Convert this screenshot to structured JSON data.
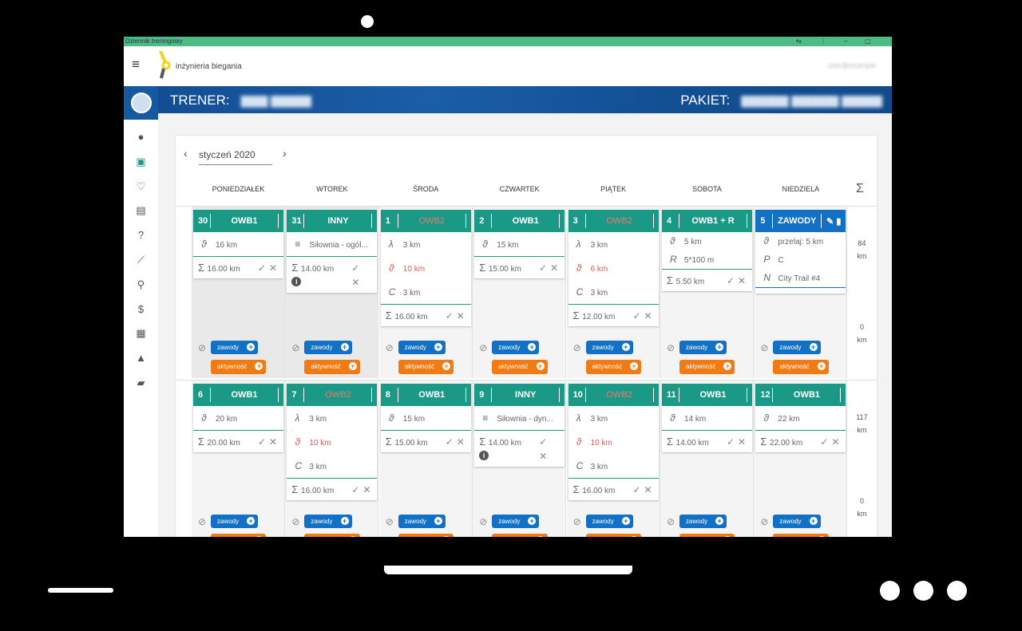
{
  "window": {
    "title": "Dziennik treningowy",
    "controls": [
      "⇆",
      "⋮",
      "–",
      "▢"
    ]
  },
  "header": {
    "brand": "inżynieria biegania",
    "user": "user@example"
  },
  "banner": {
    "trener_label": "TRENER:",
    "trener_value": "████ ██████",
    "pakiet_label": "PAKIET:",
    "pakiet_value": "███████ ███████ ██████"
  },
  "sidebar": {
    "icons": [
      "person-icon",
      "calendar-icon",
      "heart-icon",
      "gift-icon",
      "help-icon",
      "chart-icon",
      "runner-icon",
      "dollar-icon",
      "film-icon",
      "bell-icon",
      "chat-icon"
    ],
    "glyphs": [
      "●",
      "▣",
      "♡",
      "▤",
      "?",
      "⟋",
      "⚲",
      "$",
      "▦",
      "▲",
      "▰"
    ],
    "active_color": "#1a9a86"
  },
  "calendar": {
    "month": "styczeń 2020",
    "prev": "‹",
    "next": "›",
    "sigma": "Σ",
    "weekdays": [
      "PONIEDZIAŁEK",
      "WTOREK",
      "ŚRODA",
      "CZWARTEK",
      "PIĄTEK",
      "SOBOTA",
      "NIEDZIELA"
    ],
    "buttons": {
      "zawody": "zawody",
      "aktywnosc": "aktywność"
    },
    "weeks": [
      {
        "totals": [
          {
            "value": "84",
            "unit": "km"
          },
          {
            "value": "0",
            "unit": "km"
          }
        ],
        "days": [
          {
            "num": "30",
            "type": "OWB1",
            "prev": true,
            "entries": [
              {
                "icon": "ϑ",
                "text": "16 km"
              }
            ],
            "sum": "16.00 km"
          },
          {
            "num": "31",
            "type": "INNY",
            "prev": true,
            "entries": [
              {
                "icon": "≡",
                "text": "Siłownia - ogól..."
              }
            ],
            "sum": "14.00 km",
            "info": true
          },
          {
            "num": "1",
            "type": "OWB2",
            "type_red": true,
            "entries": [
              {
                "icon": "λ",
                "text": "3 km"
              },
              {
                "icon": "ϑ",
                "text": "10 km",
                "red": true
              },
              {
                "icon": "C",
                "text": "3 km"
              }
            ],
            "sum": "16.00 km"
          },
          {
            "num": "2",
            "type": "OWB1",
            "entries": [
              {
                "icon": "ϑ",
                "text": "15 km"
              }
            ],
            "sum": "15.00 km"
          },
          {
            "num": "3",
            "type": "OWB2",
            "type_red": true,
            "entries": [
              {
                "icon": "λ",
                "text": "3 km"
              },
              {
                "icon": "ϑ",
                "text": "6 km",
                "red": true
              },
              {
                "icon": "C",
                "text": "3 km"
              }
            ],
            "sum": "12.00 km"
          },
          {
            "num": "4",
            "type": "OWB1 + R",
            "entries": [
              {
                "icon": "ϑ",
                "text": "5 km"
              },
              {
                "icon": "R",
                "text": "5*100 m"
              }
            ],
            "sum": "5.50 km",
            "compact": true
          },
          {
            "num": "5",
            "type": "ZAWODY",
            "blue": true,
            "edit": true,
            "entries": [
              {
                "icon": "ϑ",
                "text": "przelaj: 5 km"
              },
              {
                "icon": "P",
                "text": "C"
              },
              {
                "icon": "N",
                "text": "City Trail #4"
              }
            ],
            "compact": true
          }
        ]
      },
      {
        "totals": [
          {
            "value": "117",
            "unit": "km"
          },
          {
            "value": "0",
            "unit": "km"
          }
        ],
        "days": [
          {
            "num": "6",
            "type": "OWB1",
            "entries": [
              {
                "icon": "ϑ",
                "text": "20 km"
              }
            ],
            "sum": "20.00 km"
          },
          {
            "num": "7",
            "type": "OWB2",
            "type_red": true,
            "entries": [
              {
                "icon": "λ",
                "text": "3 km"
              },
              {
                "icon": "ϑ",
                "text": "10 km",
                "red": true
              },
              {
                "icon": "C",
                "text": "3 km"
              }
            ],
            "sum": "16.00 km"
          },
          {
            "num": "8",
            "type": "OWB1",
            "entries": [
              {
                "icon": "ϑ",
                "text": "15 km"
              }
            ],
            "sum": "15.00 km"
          },
          {
            "num": "9",
            "type": "INNY",
            "entries": [
              {
                "icon": "≡",
                "text": "Siłownia - dyn..."
              }
            ],
            "sum": "14.00 km",
            "info": true
          },
          {
            "num": "10",
            "type": "OWB2",
            "type_red": true,
            "entries": [
              {
                "icon": "λ",
                "text": "3 km"
              },
              {
                "icon": "ϑ",
                "text": "10 km",
                "red": true
              },
              {
                "icon": "C",
                "text": "3 km"
              }
            ],
            "sum": "16.00 km"
          },
          {
            "num": "11",
            "type": "OWB1",
            "entries": [
              {
                "icon": "ϑ",
                "text": "14 km"
              }
            ],
            "sum": "14.00 km"
          },
          {
            "num": "12",
            "type": "OWB1",
            "entries": [
              {
                "icon": "ϑ",
                "text": "22 km"
              }
            ],
            "sum": "22.00 km"
          }
        ]
      }
    ]
  },
  "colors": {
    "teal": "#1a9a86",
    "blue": "#1271c4",
    "orange": "#f27a12",
    "red": "#e05a5a",
    "titlebar": "#4fbb84"
  }
}
